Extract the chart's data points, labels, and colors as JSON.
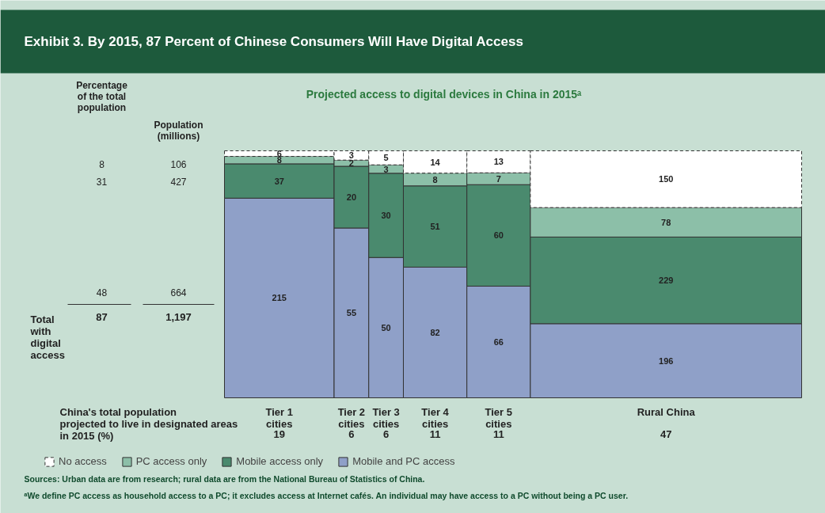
{
  "chart_data": {
    "type": "other",
    "title": "Exhibit 3. By 2015, 87 Percent of Chinese Consumers Will Have Digital Access",
    "subtitle": "Projected access to digital devices in China in 2015ᵃ",
    "xlabel": "China's total population projected to live in designated areas in 2015 (%)",
    "categories": [
      "Tier 1\ncities",
      "Tier 2\ncities",
      "Tier 3\ncities",
      "Tier 4\ncities",
      "Tier 5\ncities",
      "Rural China"
    ],
    "values": [
      19,
      6,
      6,
      11,
      11,
      47
    ],
    "series": [
      {
        "name": "Mobile and PC access",
        "color": "#8fa0c8",
        "values": [
          215,
          55,
          50,
          82,
          66,
          196
        ]
      },
      {
        "name": "Mobile access only",
        "color": "#4a8a6e",
        "values": [
          37,
          20,
          30,
          51,
          60,
          229
        ]
      },
      {
        "name": "PC access only",
        "color": "#8cbfa8",
        "values": [
          8,
          2,
          3,
          8,
          7,
          78
        ]
      },
      {
        "name": "No access",
        "color": "#ffffff",
        "line_style": "dashed",
        "values": [
          6,
          3,
          5,
          14,
          13,
          150
        ]
      }
    ],
    "data_labels": true,
    "legend": "bottom",
    "annotations": [
      "Percentage\nof the total\npopulation",
      "Population\n(millions)",
      "8",
      "106",
      "31",
      "427",
      "48",
      "664",
      "Total\nwith\ndigital\naccess",
      "87",
      "1,197",
      "Sources: Urban data are from research; rural data are from the National Bureau of Statistics of China.",
      "ᵃWe define PC access as household access to a PC; it excludes access at Internet cafés. An individual may have access to a PC without being a PC user."
    ]
  }
}
